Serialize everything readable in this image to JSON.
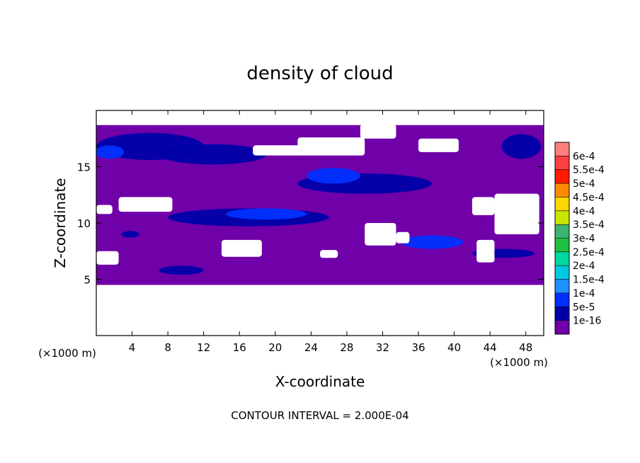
{
  "chart_data": {
    "type": "heatmap",
    "title": "density of cloud",
    "xlabel": "X-coordinate",
    "ylabel": "Z-coordinate",
    "x_unit": "(×1000 m)",
    "y_unit": "(×1000 m)",
    "xlim": [
      0,
      50
    ],
    "ylim": [
      0,
      20
    ],
    "x_ticks": [
      4,
      8,
      12,
      16,
      20,
      24,
      28,
      32,
      36,
      40,
      44,
      48
    ],
    "y_ticks": [
      5,
      10,
      15
    ],
    "note": "CONTOUR INTERVAL = 2.000E-04",
    "colorbar": {
      "labels": [
        "6e-4",
        "5.5e-4",
        "5e-4",
        "4.5e-4",
        "4e-4",
        "3.5e-4",
        "3e-4",
        "2.5e-4",
        "2e-4",
        "1.5e-4",
        "1e-4",
        "5e-5",
        "1e-16"
      ],
      "colors": [
        "#ff7f7f",
        "#ff4040",
        "#ff1a00",
        "#ff8c00",
        "#ffd700",
        "#c8e600",
        "#3cb371",
        "#20c040",
        "#00d8a0",
        "#00c8e0",
        "#1e90ff",
        "#0030ff",
        "#0000a8",
        "#7000a8"
      ]
    },
    "cloud_layer": {
      "base_color": "#7000a8",
      "z_range": [
        4.5,
        18.7
      ],
      "gaps": [
        {
          "x": [
            29.5,
            33.5
          ],
          "z": [
            17.5,
            18.8
          ]
        },
        {
          "x": [
            22.5,
            30.0
          ],
          "z": [
            16.0,
            17.6
          ]
        },
        {
          "x": [
            36.0,
            40.5
          ],
          "z": [
            16.3,
            17.5
          ]
        },
        {
          "x": [
            17.5,
            23.5
          ],
          "z": [
            16.0,
            16.9
          ]
        },
        {
          "x": [
            0.0,
            1.8
          ],
          "z": [
            10.8,
            11.6
          ]
        },
        {
          "x": [
            2.5,
            8.5
          ],
          "z": [
            11.0,
            12.3
          ]
        },
        {
          "x": [
            42.0,
            44.5
          ],
          "z": [
            10.7,
            12.3
          ]
        },
        {
          "x": [
            44.5,
            49.5
          ],
          "z": [
            9.0,
            12.6
          ]
        },
        {
          "x": [
            14.0,
            18.5
          ],
          "z": [
            7.0,
            8.5
          ]
        },
        {
          "x": [
            0.0,
            2.5
          ],
          "z": [
            6.3,
            7.5
          ]
        },
        {
          "x": [
            30.0,
            33.5
          ],
          "z": [
            8.0,
            10.0
          ]
        },
        {
          "x": [
            33.5,
            35.0
          ],
          "z": [
            8.2,
            9.2
          ]
        },
        {
          "x": [
            25.0,
            27.0
          ],
          "z": [
            6.9,
            7.6
          ]
        },
        {
          "x": [
            42.5,
            44.5
          ],
          "z": [
            6.5,
            8.5
          ]
        }
      ],
      "blobs": [
        {
          "x": 6.0,
          "z": 16.8,
          "rx": 6.0,
          "rz": 1.2,
          "level": "5e-5"
        },
        {
          "x": 13.0,
          "z": 16.1,
          "rx": 6.0,
          "rz": 0.9,
          "level": "5e-5"
        },
        {
          "x": 1.5,
          "z": 16.3,
          "rx": 1.6,
          "rz": 0.6,
          "level": "1e-4"
        },
        {
          "x": 30.0,
          "z": 13.5,
          "rx": 7.5,
          "rz": 0.9,
          "level": "5e-5"
        },
        {
          "x": 26.5,
          "z": 14.2,
          "rx": 3.0,
          "rz": 0.7,
          "level": "1e-4"
        },
        {
          "x": 47.5,
          "z": 16.8,
          "rx": 2.2,
          "rz": 1.1,
          "level": "5e-5"
        },
        {
          "x": 17.0,
          "z": 10.5,
          "rx": 9.0,
          "rz": 0.8,
          "level": "5e-5"
        },
        {
          "x": 19.0,
          "z": 10.8,
          "rx": 4.5,
          "rz": 0.5,
          "level": "1e-4"
        },
        {
          "x": 37.5,
          "z": 8.3,
          "rx": 3.5,
          "rz": 0.6,
          "level": "1e-4"
        },
        {
          "x": 45.5,
          "z": 7.3,
          "rx": 3.5,
          "rz": 0.4,
          "level": "5e-5"
        },
        {
          "x": 9.5,
          "z": 5.8,
          "rx": 2.5,
          "rz": 0.4,
          "level": "5e-5"
        },
        {
          "x": 3.8,
          "z": 9.0,
          "rx": 1.0,
          "rz": 0.3,
          "level": "5e-5"
        }
      ]
    }
  }
}
